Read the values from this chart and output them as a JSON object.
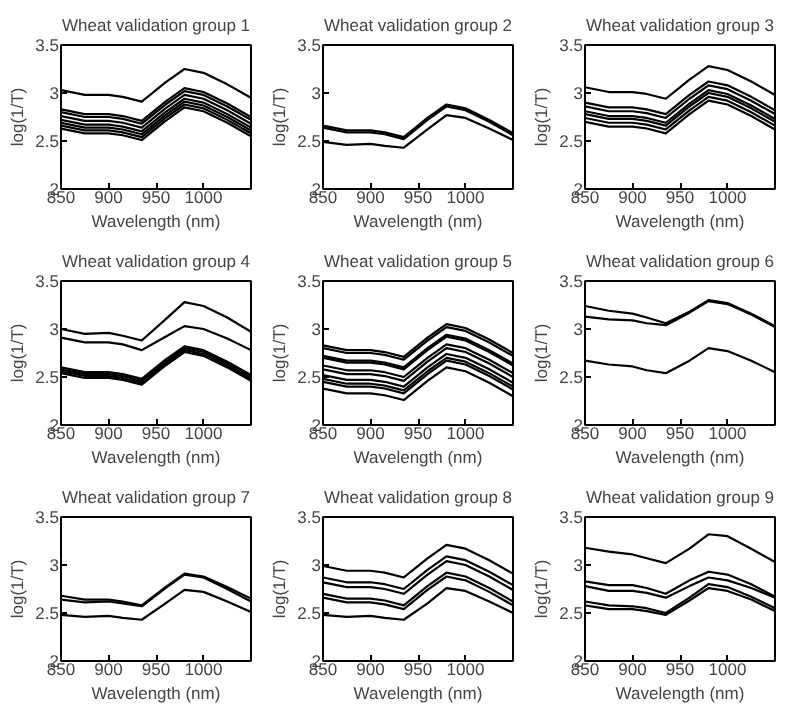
{
  "chart_data": [
    {
      "type": "line",
      "title": "Wheat validation group 1",
      "xlabel": "Wavelength (nm)",
      "ylabel": "log(1/T)",
      "x": [
        850,
        875,
        900,
        915,
        935,
        960,
        980,
        1000,
        1025,
        1050
      ],
      "xlim": [
        850,
        1050
      ],
      "xticks": [
        850,
        900,
        950,
        1000
      ],
      "ylim": [
        2,
        3.5
      ],
      "yticks": [
        2,
        2.5,
        3,
        3.5
      ],
      "grid": false,
      "series": [
        {
          "color": "#000000",
          "values": [
            3.03,
            2.98,
            2.98,
            2.96,
            2.91,
            3.11,
            3.25,
            3.21,
            3.09,
            2.95
          ]
        },
        {
          "color": "#000000",
          "values": [
            2.83,
            2.78,
            2.78,
            2.76,
            2.71,
            2.91,
            3.05,
            3.01,
            2.89,
            2.75
          ]
        },
        {
          "color": "#000000",
          "values": [
            2.8,
            2.75,
            2.75,
            2.73,
            2.68,
            2.88,
            3.02,
            2.98,
            2.86,
            2.72
          ]
        },
        {
          "color": "#000000",
          "values": [
            2.76,
            2.71,
            2.71,
            2.69,
            2.64,
            2.84,
            2.98,
            2.94,
            2.82,
            2.68
          ]
        },
        {
          "color": "#000000",
          "values": [
            2.72,
            2.67,
            2.67,
            2.65,
            2.6,
            2.8,
            2.94,
            2.9,
            2.78,
            2.64
          ]
        },
        {
          "color": "#000000",
          "values": [
            2.69,
            2.64,
            2.64,
            2.62,
            2.57,
            2.77,
            2.91,
            2.87,
            2.75,
            2.61
          ]
        },
        {
          "color": "#000000",
          "values": [
            2.66,
            2.61,
            2.61,
            2.59,
            2.54,
            2.74,
            2.88,
            2.84,
            2.72,
            2.58
          ]
        },
        {
          "color": "#000000",
          "values": [
            2.63,
            2.58,
            2.58,
            2.56,
            2.51,
            2.71,
            2.85,
            2.81,
            2.69,
            2.55
          ]
        }
      ]
    },
    {
      "type": "line",
      "title": "Wheat validation group 2",
      "xlabel": "Wavelength (nm)",
      "ylabel": "log(1/T)",
      "x": [
        850,
        875,
        900,
        915,
        935,
        960,
        980,
        1000,
        1025,
        1050
      ],
      "xlim": [
        850,
        1050
      ],
      "xticks": [
        850,
        900,
        950,
        1000
      ],
      "ylim": [
        2,
        3.5
      ],
      "yticks": [
        2,
        2.5,
        3,
        3.5
      ],
      "grid": false,
      "series": [
        {
          "color": "#000000",
          "values": [
            2.66,
            2.61,
            2.61,
            2.59,
            2.54,
            2.74,
            2.88,
            2.84,
            2.72,
            2.58
          ]
        },
        {
          "color": "#000000",
          "values": [
            2.64,
            2.59,
            2.59,
            2.57,
            2.52,
            2.72,
            2.86,
            2.82,
            2.7,
            2.56
          ]
        },
        {
          "color": "#000000",
          "values": [
            2.49,
            2.46,
            2.47,
            2.45,
            2.43,
            2.62,
            2.77,
            2.74,
            2.63,
            2.51
          ]
        }
      ]
    },
    {
      "type": "line",
      "title": "Wheat validation group 3",
      "xlabel": "Wavelength (nm)",
      "ylabel": "log(1/T)",
      "x": [
        850,
        875,
        900,
        915,
        935,
        960,
        980,
        1000,
        1025,
        1050
      ],
      "xlim": [
        850,
        1050
      ],
      "xticks": [
        850,
        900,
        950,
        1000
      ],
      "ylim": [
        2,
        3.5
      ],
      "yticks": [
        2,
        2.5,
        3,
        3.5
      ],
      "grid": false,
      "series": [
        {
          "color": "#000000",
          "values": [
            3.06,
            3.01,
            3.01,
            2.99,
            2.94,
            3.14,
            3.28,
            3.24,
            3.12,
            2.98
          ]
        },
        {
          "color": "#000000",
          "values": [
            2.9,
            2.85,
            2.85,
            2.83,
            2.78,
            2.98,
            3.12,
            3.08,
            2.96,
            2.82
          ]
        },
        {
          "color": "#000000",
          "values": [
            2.86,
            2.81,
            2.81,
            2.79,
            2.74,
            2.94,
            3.08,
            3.04,
            2.92,
            2.78
          ]
        },
        {
          "color": "#000000",
          "values": [
            2.81,
            2.76,
            2.76,
            2.74,
            2.69,
            2.89,
            3.03,
            2.99,
            2.87,
            2.73
          ]
        },
        {
          "color": "#000000",
          "values": [
            2.78,
            2.73,
            2.73,
            2.71,
            2.66,
            2.86,
            3.0,
            2.96,
            2.84,
            2.7
          ]
        },
        {
          "color": "#000000",
          "values": [
            2.74,
            2.69,
            2.69,
            2.67,
            2.62,
            2.82,
            2.96,
            2.92,
            2.8,
            2.66
          ]
        },
        {
          "color": "#000000",
          "values": [
            2.7,
            2.65,
            2.65,
            2.63,
            2.58,
            2.78,
            2.92,
            2.88,
            2.76,
            2.62
          ]
        }
      ]
    },
    {
      "type": "line",
      "title": "Wheat validation group 4",
      "xlabel": "Wavelength (nm)",
      "ylabel": "log(1/T)",
      "x": [
        850,
        875,
        900,
        915,
        935,
        960,
        980,
        1000,
        1025,
        1050
      ],
      "xlim": [
        850,
        1050
      ],
      "xticks": [
        850,
        900,
        950,
        1000
      ],
      "ylim": [
        2,
        3.5
      ],
      "yticks": [
        2,
        2.5,
        3,
        3.5
      ],
      "grid": false,
      "series": [
        {
          "color": "#000000",
          "values": [
            3.0,
            2.95,
            2.96,
            2.93,
            2.88,
            3.1,
            3.28,
            3.24,
            3.12,
            2.97
          ]
        },
        {
          "color": "#000000",
          "values": [
            2.91,
            2.86,
            2.86,
            2.84,
            2.78,
            2.92,
            3.03,
            3.0,
            2.9,
            2.78
          ]
        },
        {
          "color": "#000000",
          "values": [
            2.6,
            2.55,
            2.55,
            2.53,
            2.48,
            2.68,
            2.82,
            2.78,
            2.66,
            2.52
          ]
        },
        {
          "color": "#000000",
          "values": [
            2.58,
            2.53,
            2.53,
            2.51,
            2.46,
            2.66,
            2.8,
            2.76,
            2.64,
            2.5
          ]
        },
        {
          "color": "#000000",
          "values": [
            2.56,
            2.51,
            2.51,
            2.49,
            2.44,
            2.64,
            2.78,
            2.74,
            2.62,
            2.48
          ]
        },
        {
          "color": "#000000",
          "values": [
            2.54,
            2.49,
            2.49,
            2.47,
            2.42,
            2.62,
            2.76,
            2.72,
            2.6,
            2.46
          ]
        }
      ]
    },
    {
      "type": "line",
      "title": "Wheat validation group 5",
      "xlabel": "Wavelength (nm)",
      "ylabel": "log(1/T)",
      "x": [
        850,
        875,
        900,
        915,
        935,
        960,
        980,
        1000,
        1025,
        1050
      ],
      "xlim": [
        850,
        1050
      ],
      "xticks": [
        850,
        900,
        950,
        1000
      ],
      "ylim": [
        2,
        3.5
      ],
      "yticks": [
        2,
        2.5,
        3,
        3.5
      ],
      "grid": false,
      "series": [
        {
          "color": "#000000",
          "values": [
            2.83,
            2.78,
            2.78,
            2.76,
            2.71,
            2.91,
            3.05,
            3.01,
            2.89,
            2.75
          ]
        },
        {
          "color": "#000000",
          "values": [
            2.8,
            2.75,
            2.75,
            2.73,
            2.68,
            2.88,
            3.02,
            2.98,
            2.86,
            2.72
          ]
        },
        {
          "color": "#000000",
          "values": [
            2.72,
            2.67,
            2.67,
            2.65,
            2.6,
            2.8,
            2.94,
            2.9,
            2.78,
            2.64
          ]
        },
        {
          "color": "#000000",
          "values": [
            2.7,
            2.65,
            2.65,
            2.63,
            2.58,
            2.78,
            2.92,
            2.88,
            2.76,
            2.62
          ]
        },
        {
          "color": "#000000",
          "values": [
            2.62,
            2.57,
            2.57,
            2.55,
            2.5,
            2.7,
            2.84,
            2.8,
            2.68,
            2.54
          ]
        },
        {
          "color": "#000000",
          "values": [
            2.58,
            2.53,
            2.53,
            2.51,
            2.46,
            2.66,
            2.8,
            2.76,
            2.64,
            2.5
          ]
        },
        {
          "color": "#000000",
          "values": [
            2.52,
            2.47,
            2.47,
            2.45,
            2.4,
            2.6,
            2.74,
            2.7,
            2.58,
            2.44
          ]
        },
        {
          "color": "#000000",
          "values": [
            2.48,
            2.43,
            2.43,
            2.41,
            2.36,
            2.56,
            2.7,
            2.66,
            2.54,
            2.4
          ]
        },
        {
          "color": "#000000",
          "values": [
            2.45,
            2.4,
            2.4,
            2.38,
            2.33,
            2.53,
            2.67,
            2.63,
            2.51,
            2.37
          ]
        },
        {
          "color": "#000000",
          "values": [
            2.38,
            2.33,
            2.33,
            2.31,
            2.26,
            2.46,
            2.6,
            2.56,
            2.44,
            2.3
          ]
        }
      ]
    },
    {
      "type": "line",
      "title": "Wheat validation group 6",
      "xlabel": "Wavelength (nm)",
      "ylabel": "log(1/T)",
      "x": [
        850,
        875,
        900,
        915,
        935,
        960,
        980,
        1000,
        1025,
        1050
      ],
      "xlim": [
        850,
        1050
      ],
      "xticks": [
        850,
        900,
        950,
        1000
      ],
      "ylim": [
        2,
        3.5
      ],
      "yticks": [
        2,
        2.5,
        3,
        3.5
      ],
      "grid": false,
      "series": [
        {
          "color": "#000000",
          "values": [
            3.24,
            3.19,
            3.16,
            3.12,
            3.06,
            3.18,
            3.3,
            3.27,
            3.16,
            3.03
          ]
        },
        {
          "color": "#000000",
          "values": [
            3.13,
            3.1,
            3.09,
            3.06,
            3.04,
            3.17,
            3.29,
            3.26,
            3.15,
            3.02
          ]
        },
        {
          "color": "#000000",
          "values": [
            2.67,
            2.63,
            2.61,
            2.57,
            2.54,
            2.67,
            2.8,
            2.77,
            2.67,
            2.55
          ]
        }
      ]
    },
    {
      "type": "line",
      "title": "Wheat validation group 7",
      "xlabel": "Wavelength (nm)",
      "ylabel": "log(1/T)",
      "x": [
        850,
        875,
        900,
        915,
        935,
        960,
        980,
        1000,
        1025,
        1050
      ],
      "xlim": [
        850,
        1050
      ],
      "xticks": [
        850,
        900,
        950,
        1000
      ],
      "ylim": [
        2,
        3.5
      ],
      "yticks": [
        2,
        2.5,
        3,
        3.5
      ],
      "grid": false,
      "series": [
        {
          "color": "#000000",
          "values": [
            2.68,
            2.64,
            2.64,
            2.62,
            2.58,
            2.77,
            2.91,
            2.88,
            2.77,
            2.65
          ]
        },
        {
          "color": "#000000",
          "values": [
            2.64,
            2.61,
            2.62,
            2.6,
            2.57,
            2.76,
            2.9,
            2.87,
            2.75,
            2.62
          ]
        },
        {
          "color": "#000000",
          "values": [
            2.48,
            2.46,
            2.47,
            2.45,
            2.43,
            2.6,
            2.74,
            2.72,
            2.62,
            2.51
          ]
        }
      ]
    },
    {
      "type": "line",
      "title": "Wheat validation group 8",
      "xlabel": "Wavelength (nm)",
      "ylabel": "log(1/T)",
      "x": [
        850,
        875,
        900,
        915,
        935,
        960,
        980,
        1000,
        1025,
        1050
      ],
      "xlim": [
        850,
        1050
      ],
      "xticks": [
        850,
        900,
        950,
        1000
      ],
      "ylim": [
        2,
        3.5
      ],
      "yticks": [
        2,
        2.5,
        3,
        3.5
      ],
      "grid": false,
      "series": [
        {
          "color": "#000000",
          "values": [
            2.99,
            2.94,
            2.94,
            2.92,
            2.87,
            3.07,
            3.21,
            3.17,
            3.05,
            2.91
          ]
        },
        {
          "color": "#000000",
          "values": [
            2.87,
            2.82,
            2.82,
            2.8,
            2.75,
            2.95,
            3.09,
            3.05,
            2.93,
            2.79
          ]
        },
        {
          "color": "#000000",
          "values": [
            2.82,
            2.77,
            2.77,
            2.75,
            2.7,
            2.9,
            3.04,
            3.0,
            2.88,
            2.74
          ]
        },
        {
          "color": "#000000",
          "values": [
            2.7,
            2.65,
            2.65,
            2.63,
            2.58,
            2.78,
            2.92,
            2.88,
            2.76,
            2.62
          ]
        },
        {
          "color": "#000000",
          "values": [
            2.66,
            2.61,
            2.61,
            2.59,
            2.54,
            2.74,
            2.88,
            2.84,
            2.72,
            2.58
          ]
        },
        {
          "color": "#000000",
          "values": [
            2.48,
            2.46,
            2.47,
            2.45,
            2.43,
            2.6,
            2.76,
            2.73,
            2.62,
            2.5
          ]
        }
      ]
    },
    {
      "type": "line",
      "title": "Wheat validation group 9",
      "xlabel": "Wavelength (nm)",
      "ylabel": "log(1/T)",
      "x": [
        850,
        875,
        900,
        915,
        935,
        960,
        980,
        1000,
        1025,
        1050
      ],
      "xlim": [
        850,
        1050
      ],
      "xticks": [
        850,
        900,
        950,
        1000
      ],
      "ylim": [
        2,
        3.5
      ],
      "yticks": [
        2,
        2.5,
        3,
        3.5
      ],
      "grid": false,
      "series": [
        {
          "color": "#000000",
          "values": [
            3.18,
            3.14,
            3.11,
            3.07,
            3.02,
            3.17,
            3.32,
            3.3,
            3.17,
            3.03
          ]
        },
        {
          "color": "#000000",
          "values": [
            2.83,
            2.79,
            2.79,
            2.76,
            2.7,
            2.84,
            2.93,
            2.9,
            2.8,
            2.67
          ]
        },
        {
          "color": "#000000",
          "values": [
            2.78,
            2.73,
            2.73,
            2.71,
            2.66,
            2.78,
            2.87,
            2.84,
            2.76,
            2.66
          ]
        },
        {
          "color": "#000000",
          "values": [
            2.62,
            2.58,
            2.57,
            2.55,
            2.5,
            2.66,
            2.8,
            2.77,
            2.67,
            2.55
          ]
        },
        {
          "color": "#000000",
          "values": [
            2.58,
            2.54,
            2.54,
            2.52,
            2.48,
            2.63,
            2.76,
            2.73,
            2.64,
            2.52
          ]
        }
      ]
    }
  ]
}
